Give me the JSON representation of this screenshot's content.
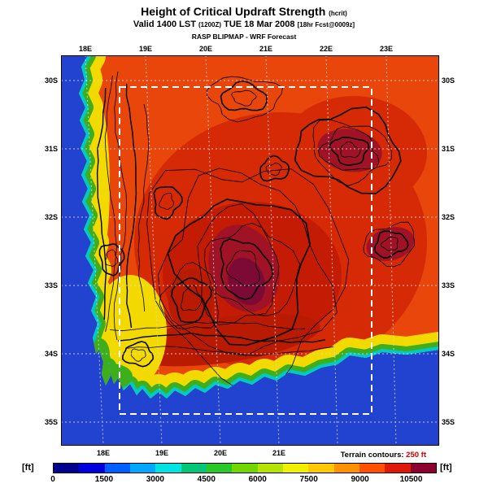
{
  "header": {
    "title": "Height of Critical Updraft Strength",
    "title_suffix": "(hcrit)",
    "valid": {
      "prefix": "Valid 1400 LST",
      "ztime": "(1200Z)",
      "date": "TUE 18 Mar 2008",
      "fcst": "[18hr Fcst@0009z]"
    },
    "model": "RASP BLIPMAP - WRF Forecast"
  },
  "map": {
    "top_ticks": [
      "18E",
      "19E",
      "20E",
      "21E",
      "22E",
      "23E"
    ],
    "bottom_ticks": [
      "18E",
      "19E",
      "20E",
      "21E"
    ],
    "left_ticks": [
      "30S",
      "31S",
      "32S",
      "33S",
      "34S",
      "35S"
    ],
    "right_ticks": [
      "30S",
      "31S",
      "32S",
      "33S",
      "34S",
      "35S"
    ],
    "note_label": "Terrain contours:",
    "note_value": "250 ft"
  },
  "colorbar": {
    "unit": "[ft]",
    "ticks": [
      "0",
      "1500",
      "3000",
      "4500",
      "6000",
      "7500",
      "9000",
      "10500"
    ],
    "colors": [
      "#000090",
      "#0000e0",
      "#0060ff",
      "#00a8ff",
      "#00e4e4",
      "#00c878",
      "#28c828",
      "#70d800",
      "#b4e400",
      "#f0f000",
      "#ffc800",
      "#ff9000",
      "#ff5000",
      "#e01808",
      "#8c0030"
    ]
  },
  "map_colors": {
    "ocean": "#2143cf",
    "land_base": "#e8460b",
    "land_hot": "#d62a06",
    "land_hot2": "#c41c04",
    "ridge_dark": "#b81a02",
    "blob_dark": "#a01226",
    "blob_core": "#7c0a34",
    "band_yellow": "#f2da00",
    "band_green": "#3fae1d",
    "band_cyan": "#00c9c9",
    "contour": "#000000",
    "grid": "#d9d9d9",
    "nest_boundary": "#ffffff",
    "note_value": "#cc0000"
  }
}
